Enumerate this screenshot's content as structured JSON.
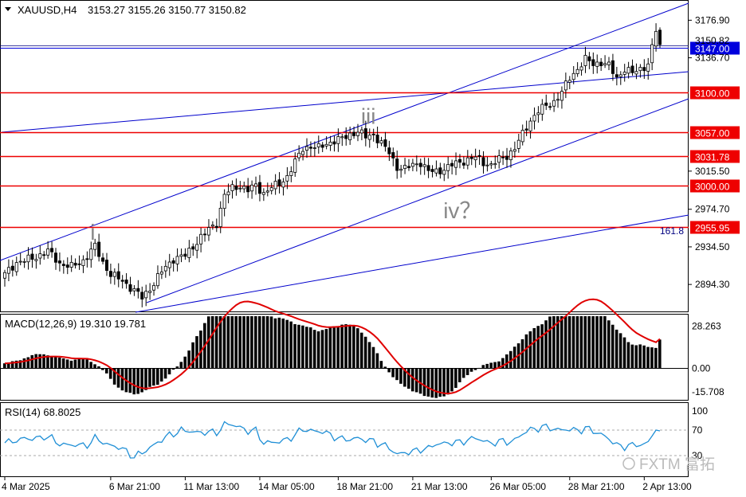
{
  "header": {
    "symbol": "XAUUSD,H4",
    "ohlc": "3153.27 3155.26 3150.77 3150.82"
  },
  "colors": {
    "bull": "#ffffff",
    "bear": "#000000",
    "wick": "#000000",
    "level_line": "#ee0000",
    "level_label_bg": "#ee0000",
    "current_label_bg": "#0000dd",
    "channel": "#0000cc",
    "macd_signal": "#e00000",
    "rsi": "#1f8fd6",
    "wave_label": "#888888"
  },
  "chart_data": {
    "type": "candlestick",
    "symbol": "XAUUSD",
    "timeframe": "H4",
    "price_axis_ticks": [
      "3176.90",
      "3136.70",
      "3015.50",
      "2974.70",
      "2934.50",
      "2894.30"
    ],
    "price_range": [
      2868,
      3190
    ],
    "current_price": "3150.82",
    "levels": [
      {
        "label": "3147.00",
        "price": 3147.0,
        "style": "current"
      },
      {
        "label": "3100.00",
        "price": 3100.0,
        "style": "red"
      },
      {
        "label": "3057.00",
        "price": 3057.0,
        "style": "red"
      },
      {
        "label": "3031.78",
        "price": 3031.78,
        "style": "red"
      },
      {
        "label": "3000.00",
        "price": 3000.0,
        "style": "red"
      },
      {
        "label": "2955.95",
        "price": 2955.95,
        "style": "red"
      }
    ],
    "fib_label": "161.8",
    "wave_labels": [
      {
        "text": "i",
        "index": 23,
        "price": 2942
      },
      {
        "text": "iii",
        "index": 92,
        "price": 3066
      },
      {
        "text": "iv？",
        "index": 113,
        "price": 2965
      }
    ],
    "x_tick_labels": [
      {
        "label": "4 Mar 2025",
        "index": 0
      },
      {
        "label": "6 Mar 21:00",
        "index": 27
      },
      {
        "label": "11 Mar 13:00",
        "index": 46
      },
      {
        "label": "14 Mar 05:00",
        "index": 65
      },
      {
        "label": "18 Mar 21:00",
        "index": 85
      },
      {
        "label": "21 Mar 13:00",
        "index": 104
      },
      {
        "label": "26 Mar 05:00",
        "index": 124
      },
      {
        "label": "28 Mar 21:00",
        "index": 144
      },
      {
        "label": "2 Apr 13:00",
        "index": 163
      }
    ],
    "close_anchors": [
      [
        0,
        2905
      ],
      [
        3,
        2918
      ],
      [
        7,
        2922
      ],
      [
        11,
        2930
      ],
      [
        14,
        2917
      ],
      [
        17,
        2913
      ],
      [
        20,
        2920
      ],
      [
        23,
        2935
      ],
      [
        25,
        2918
      ],
      [
        27,
        2905
      ],
      [
        30,
        2898
      ],
      [
        33,
        2888
      ],
      [
        35,
        2880
      ],
      [
        37,
        2890
      ],
      [
        40,
        2908
      ],
      [
        43,
        2922
      ],
      [
        46,
        2925
      ],
      [
        48,
        2935
      ],
      [
        50,
        2945
      ],
      [
        52,
        2953
      ],
      [
        54,
        2960
      ],
      [
        56,
        2990
      ],
      [
        58,
        2997
      ],
      [
        60,
        3000
      ],
      [
        62,
        2995
      ],
      [
        64,
        3000
      ],
      [
        66,
        2992
      ],
      [
        68,
        2998
      ],
      [
        70,
        3002
      ],
      [
        72,
        3010
      ],
      [
        74,
        3025
      ],
      [
        76,
        3040
      ],
      [
        78,
        3042
      ],
      [
        80,
        3040
      ],
      [
        82,
        3045
      ],
      [
        84,
        3048
      ],
      [
        86,
        3050
      ],
      [
        88,
        3055
      ],
      [
        90,
        3058
      ],
      [
        92,
        3052
      ],
      [
        94,
        3055
      ],
      [
        96,
        3045
      ],
      [
        98,
        3035
      ],
      [
        100,
        3020
      ],
      [
        102,
        3018
      ],
      [
        104,
        3022
      ],
      [
        106,
        3025
      ],
      [
        108,
        3015
      ],
      [
        110,
        3015
      ],
      [
        112,
        3018
      ],
      [
        114,
        3022
      ],
      [
        116,
        3025
      ],
      [
        118,
        3028
      ],
      [
        120,
        3030
      ],
      [
        122,
        3025
      ],
      [
        124,
        3022
      ],
      [
        126,
        3028
      ],
      [
        128,
        3032
      ],
      [
        130,
        3040
      ],
      [
        132,
        3055
      ],
      [
        134,
        3070
      ],
      [
        136,
        3080
      ],
      [
        138,
        3085
      ],
      [
        140,
        3090
      ],
      [
        142,
        3100
      ],
      [
        144,
        3115
      ],
      [
        146,
        3125
      ],
      [
        148,
        3135
      ],
      [
        150,
        3130
      ],
      [
        152,
        3132
      ],
      [
        154,
        3128
      ],
      [
        156,
        3115
      ],
      [
        158,
        3125
      ],
      [
        160,
        3120
      ],
      [
        162,
        3125
      ],
      [
        164,
        3130
      ],
      [
        166,
        3165
      ],
      [
        167,
        3150.82
      ]
    ],
    "macd": {
      "label": "MACD(12,26,9) 19.310 19.781",
      "value": 19.31,
      "signal": 19.781,
      "ticks": [
        "28.263",
        "0.00",
        "-15.708"
      ],
      "range": [
        -20,
        35
      ]
    },
    "rsi": {
      "label": "RSI(14) 68.8025",
      "value": 68.8025,
      "ticks": [
        "100",
        "70",
        "30"
      ],
      "levels": [
        70,
        30
      ],
      "range": [
        0,
        110
      ]
    }
  },
  "watermark": {
    "text": "FXTM 富拓"
  }
}
